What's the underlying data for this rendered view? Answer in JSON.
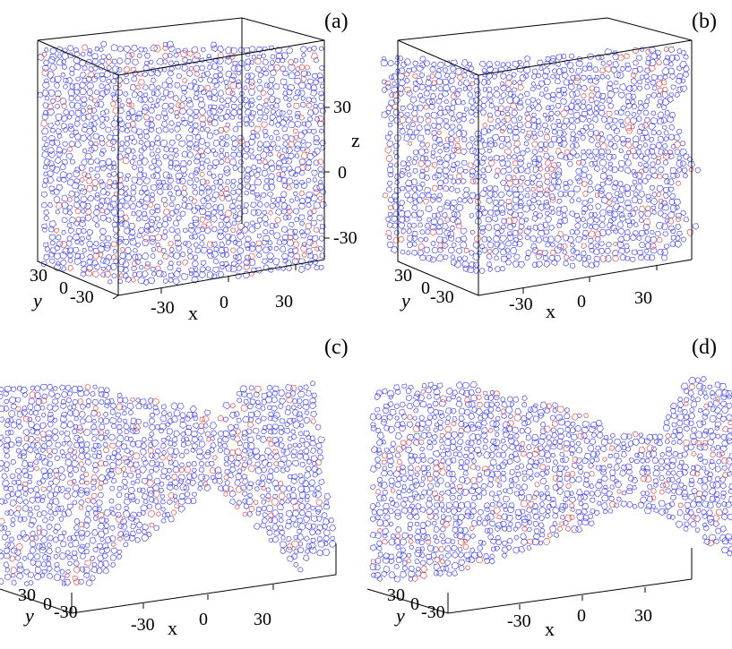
{
  "panels": [
    {
      "label": "(a)",
      "axes": {
        "x": {
          "name": "x",
          "ticks": [
            "-30",
            "0",
            "30"
          ]
        },
        "y": {
          "name": "y",
          "ticks": [
            "30",
            "0",
            "-30"
          ]
        },
        "z": {
          "name": "z",
          "ticks": [
            "30",
            "0",
            "-30"
          ]
        }
      }
    },
    {
      "label": "(b)",
      "axes": {
        "x": {
          "name": "x",
          "ticks": [
            "-30",
            "0",
            "30"
          ]
        },
        "y": {
          "name": "y",
          "ticks": [
            "30",
            "0",
            "-30"
          ]
        }
      }
    },
    {
      "label": "(c)",
      "axes": {
        "x": {
          "name": "x",
          "ticks": [
            "-30",
            "0",
            "30"
          ]
        },
        "y": {
          "name": "y",
          "ticks": [
            "30",
            "0",
            "-30"
          ]
        }
      }
    },
    {
      "label": "(d)",
      "axes": {
        "x": {
          "name": "x",
          "ticks": [
            "-30",
            "0",
            "30"
          ]
        },
        "y": {
          "name": "y",
          "ticks": [
            "30",
            "0",
            "-30"
          ]
        }
      }
    }
  ],
  "colors": {
    "mesh": "#3a3ae8",
    "highlight": "#d84040",
    "frame": "#000000"
  }
}
